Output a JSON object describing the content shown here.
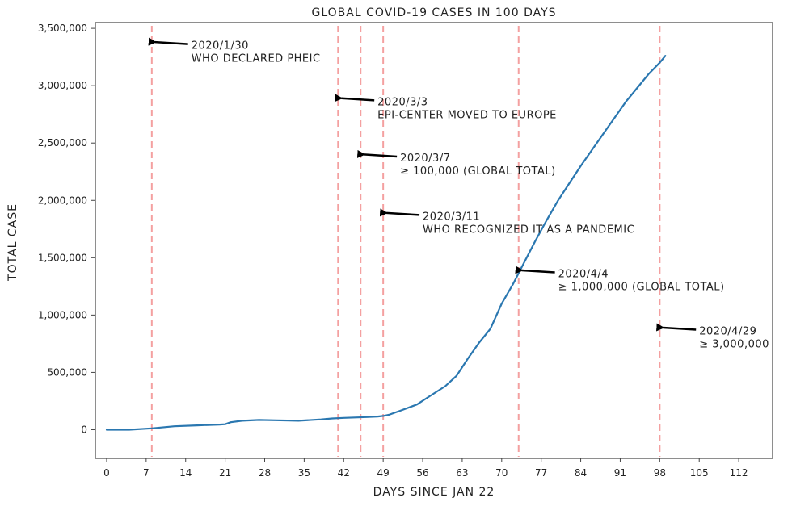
{
  "chart_data": {
    "type": "line",
    "title": "GLOBAL COVID-19 CASES IN 100 DAYS",
    "xlabel": "DAYS SINCE JAN 22",
    "ylabel": "TOTAL CASE",
    "xlim": [
      -2,
      118
    ],
    "ylim": [
      -250000,
      3550000
    ],
    "xticks": [
      0,
      7,
      14,
      21,
      28,
      35,
      42,
      49,
      56,
      63,
      70,
      77,
      84,
      91,
      98,
      105,
      112
    ],
    "xtick_labels": [
      "0",
      "7",
      "14",
      "21",
      "28",
      "35",
      "42",
      "49",
      "56",
      "63",
      "70",
      "77",
      "84",
      "91",
      "98",
      "105",
      "112"
    ],
    "yticks": [
      0,
      500000,
      1000000,
      1500000,
      2000000,
      2500000,
      3000000,
      3500000
    ],
    "ytick_labels": [
      "0",
      "500,000",
      "1,000,000",
      "1,500,000",
      "2,000,000",
      "2,500,000",
      "3,000,000",
      "3,500,000"
    ],
    "grid": false,
    "colors": {
      "line": "#2a77b0",
      "vline": "#f4a0a0",
      "arrow": "#000000"
    },
    "series": [
      {
        "x": [
          0,
          4,
          8,
          12,
          16,
          20,
          21,
          22,
          24,
          27,
          30,
          34,
          38,
          40,
          42,
          44,
          46,
          48,
          49,
          50,
          52,
          55,
          57,
          60,
          62,
          64,
          66,
          68,
          70,
          72,
          74,
          76,
          78,
          80,
          82,
          84,
          86,
          88,
          90,
          92,
          94,
          96,
          98,
          99
        ],
        "values": [
          0,
          0,
          12000,
          30000,
          38000,
          45000,
          48000,
          65000,
          78000,
          85000,
          82000,
          78000,
          90000,
          98000,
          103000,
          107000,
          110000,
          115000,
          120000,
          130000,
          165000,
          220000,
          285000,
          380000,
          470000,
          620000,
          760000,
          880000,
          1100000,
          1270000,
          1460000,
          1650000,
          1830000,
          2000000,
          2150000,
          2300000,
          2440000,
          2580000,
          2720000,
          2860000,
          2980000,
          3100000,
          3200000,
          3260000
        ]
      }
    ],
    "vlines": [
      8,
      41,
      45,
      49,
      73,
      98
    ],
    "annotations": [
      {
        "date": "2020/1/30",
        "text": "WHO DECLARED PHEIC",
        "x": 8,
        "y": 3380000,
        "text_x": 15,
        "text_y": 3320000
      },
      {
        "date": "2020/3/3",
        "text": "EPI-CENTER MOVED TO EUROPE",
        "x": 41,
        "y": 2890000,
        "text_x": 48,
        "text_y": 2830000
      },
      {
        "date": "2020/3/7",
        "text": "≥ 100,000 (GLOBAL TOTAL)",
        "x": 45,
        "y": 2400000,
        "text_x": 52,
        "text_y": 2340000
      },
      {
        "date": "2020/3/11",
        "text": "WHO RECOGNIZED IT AS A PANDEMIC",
        "x": 49,
        "y": 1890000,
        "text_x": 56,
        "text_y": 1830000
      },
      {
        "date": "2020/4/4",
        "text": "≥ 1,000,000 (GLOBAL TOTAL)",
        "x": 73,
        "y": 1390000,
        "text_x": 80,
        "text_y": 1330000
      },
      {
        "date": "2020/4/29",
        "text": "≥ 3,000,000",
        "x": 98,
        "y": 890000,
        "text_x": 105,
        "text_y": 830000
      }
    ]
  }
}
